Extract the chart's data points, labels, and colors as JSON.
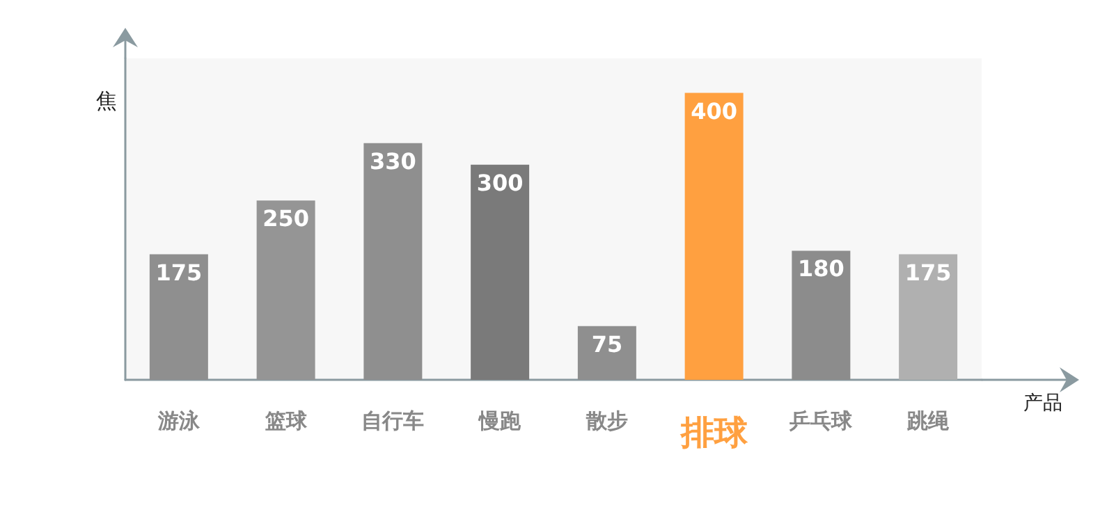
{
  "chart_data": {
    "type": "bar",
    "xlabel": "产品",
    "ylabel": "焦",
    "categories": [
      "游泳",
      "篮球",
      "自行车",
      "慢跑",
      "散步",
      "排球",
      "乒乓球",
      "跳绳"
    ],
    "values": [
      175,
      250,
      330,
      300,
      75,
      400,
      180,
      175
    ],
    "colors": [
      "#8f8f8f",
      "#959595",
      "#8f8f8f",
      "#7a7a7a",
      "#8f8f8f",
      "#ffa040",
      "#8c8c8c",
      "#b0b0b0"
    ],
    "data_labels": true,
    "tick_labels": "x"
  }
}
